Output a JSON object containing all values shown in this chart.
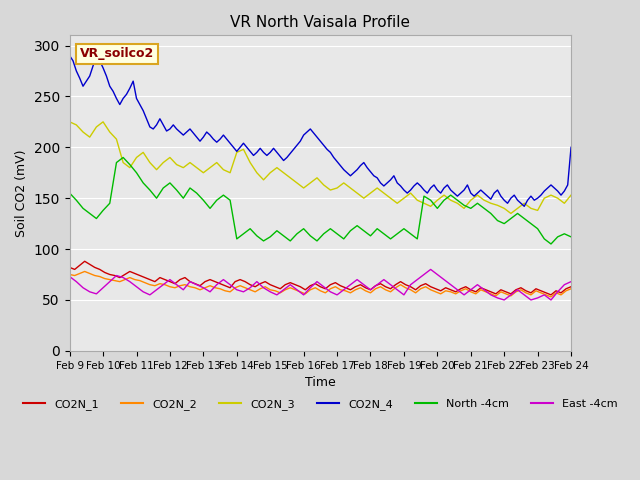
{
  "title": "VR North Vaisala Profile",
  "xlabel": "Time",
  "ylabel": "Soil CO2 (mV)",
  "xlim": [
    0,
    15
  ],
  "ylim": [
    0,
    310
  ],
  "yticks": [
    0,
    50,
    100,
    150,
    200,
    250,
    300
  ],
  "bg_color": "#e8e8e8",
  "plot_bg_color": "#e8e8e8",
  "annotation_text": "VR_soilco2",
  "legend_labels": [
    "CO2N_1",
    "CO2N_2",
    "CO2N_3",
    "CO2N_4",
    "North -4cm",
    "East -4cm"
  ],
  "legend_colors": [
    "#cc0000",
    "#ff8800",
    "#cccc00",
    "#0000cc",
    "#00bb00",
    "#cc00cc"
  ],
  "xtick_labels": [
    "Feb 9",
    "Feb 10",
    "Feb 11",
    "Feb 12",
    "Feb 13",
    "Feb 14",
    "Feb 15",
    "Feb 16",
    "Feb 17",
    "Feb 18",
    "Feb 19",
    "Feb 20",
    "Feb 21",
    "Feb 22",
    "Feb 23",
    "Feb 24"
  ],
  "series": {
    "CO2N_1": {
      "color": "#cc0000",
      "x": [
        0,
        0.15,
        0.3,
        0.45,
        0.6,
        0.75,
        0.9,
        1.05,
        1.2,
        1.35,
        1.5,
        1.65,
        1.8,
        1.95,
        2.1,
        2.25,
        2.4,
        2.55,
        2.7,
        2.85,
        3.0,
        3.15,
        3.3,
        3.45,
        3.6,
        3.75,
        3.9,
        4.05,
        4.2,
        4.35,
        4.5,
        4.65,
        4.8,
        4.95,
        5.1,
        5.25,
        5.4,
        5.55,
        5.7,
        5.85,
        6.0,
        6.15,
        6.3,
        6.45,
        6.6,
        6.75,
        6.9,
        7.05,
        7.2,
        7.35,
        7.5,
        7.65,
        7.8,
        7.95,
        8.1,
        8.25,
        8.4,
        8.55,
        8.7,
        8.85,
        9.0,
        9.15,
        9.3,
        9.45,
        9.6,
        9.75,
        9.9,
        10.05,
        10.2,
        10.35,
        10.5,
        10.65,
        10.8,
        10.95,
        11.1,
        11.25,
        11.4,
        11.55,
        11.7,
        11.85,
        12.0,
        12.15,
        12.3,
        12.45,
        12.6,
        12.75,
        12.9,
        13.05,
        13.2,
        13.35,
        13.5,
        13.65,
        13.8,
        13.95,
        14.1,
        14.25,
        14.4,
        14.55,
        14.7,
        14.85,
        15.0
      ],
      "y": [
        82,
        80,
        84,
        88,
        85,
        82,
        80,
        77,
        75,
        74,
        72,
        75,
        78,
        76,
        74,
        72,
        70,
        68,
        72,
        70,
        68,
        66,
        70,
        72,
        68,
        66,
        64,
        68,
        70,
        68,
        66,
        64,
        62,
        68,
        70,
        68,
        65,
        63,
        66,
        68,
        65,
        63,
        61,
        65,
        67,
        65,
        63,
        60,
        64,
        66,
        63,
        61,
        65,
        67,
        64,
        62,
        60,
        63,
        65,
        62,
        60,
        64,
        66,
        63,
        61,
        65,
        68,
        65,
        63,
        60,
        64,
        66,
        63,
        61,
        59,
        62,
        60,
        58,
        61,
        63,
        60,
        58,
        62,
        60,
        58,
        56,
        60,
        58,
        56,
        60,
        62,
        59,
        57,
        61,
        59,
        57,
        55,
        59,
        57,
        61,
        63
      ]
    },
    "CO2N_2": {
      "color": "#ff8800",
      "x": [
        0,
        0.15,
        0.3,
        0.45,
        0.6,
        0.75,
        0.9,
        1.05,
        1.2,
        1.35,
        1.5,
        1.65,
        1.8,
        1.95,
        2.1,
        2.25,
        2.4,
        2.55,
        2.7,
        2.85,
        3.0,
        3.15,
        3.3,
        3.45,
        3.6,
        3.75,
        3.9,
        4.05,
        4.2,
        4.35,
        4.5,
        4.65,
        4.8,
        4.95,
        5.1,
        5.25,
        5.4,
        5.55,
        5.7,
        5.85,
        6.0,
        6.15,
        6.3,
        6.45,
        6.6,
        6.75,
        6.9,
        7.05,
        7.2,
        7.35,
        7.5,
        7.65,
        7.8,
        7.95,
        8.1,
        8.25,
        8.4,
        8.55,
        8.7,
        8.85,
        9.0,
        9.15,
        9.3,
        9.45,
        9.6,
        9.75,
        9.9,
        10.05,
        10.2,
        10.35,
        10.5,
        10.65,
        10.8,
        10.95,
        11.1,
        11.25,
        11.4,
        11.55,
        11.7,
        11.85,
        12.0,
        12.15,
        12.3,
        12.45,
        12.6,
        12.75,
        12.9,
        13.05,
        13.2,
        13.35,
        13.5,
        13.65,
        13.8,
        13.95,
        14.1,
        14.25,
        14.4,
        14.55,
        14.7,
        14.85,
        15.0
      ],
      "y": [
        75,
        74,
        76,
        78,
        76,
        74,
        73,
        71,
        70,
        69,
        68,
        70,
        72,
        70,
        69,
        67,
        65,
        64,
        66,
        65,
        63,
        62,
        64,
        65,
        63,
        62,
        60,
        62,
        64,
        62,
        61,
        59,
        58,
        62,
        64,
        62,
        60,
        58,
        61,
        63,
        60,
        59,
        57,
        60,
        62,
        60,
        58,
        56,
        60,
        62,
        59,
        57,
        61,
        63,
        60,
        59,
        57,
        60,
        62,
        59,
        57,
        61,
        63,
        60,
        58,
        62,
        65,
        62,
        60,
        57,
        61,
        63,
        60,
        58,
        56,
        59,
        58,
        56,
        59,
        61,
        58,
        56,
        60,
        58,
        56,
        54,
        58,
        56,
        54,
        58,
        60,
        57,
        55,
        59,
        57,
        55,
        53,
        57,
        55,
        59,
        61
      ]
    },
    "CO2N_3": {
      "color": "#cccc00",
      "x": [
        0,
        0.2,
        0.4,
        0.6,
        0.8,
        1.0,
        1.2,
        1.4,
        1.6,
        1.8,
        2.0,
        2.2,
        2.4,
        2.6,
        2.8,
        3.0,
        3.2,
        3.4,
        3.6,
        3.8,
        4.0,
        4.2,
        4.4,
        4.6,
        4.8,
        5.0,
        5.2,
        5.4,
        5.6,
        5.8,
        6.0,
        6.2,
        6.4,
        6.6,
        6.8,
        7.0,
        7.2,
        7.4,
        7.6,
        7.8,
        8.0,
        8.2,
        8.4,
        8.6,
        8.8,
        9.0,
        9.2,
        9.4,
        9.6,
        9.8,
        10.0,
        10.2,
        10.4,
        10.6,
        10.8,
        11.0,
        11.2,
        11.4,
        11.6,
        11.8,
        12.0,
        12.2,
        12.4,
        12.6,
        12.8,
        13.0,
        13.2,
        13.4,
        13.6,
        13.8,
        14.0,
        14.2,
        14.4,
        14.6,
        14.8,
        15.0
      ],
      "y": [
        225,
        222,
        215,
        210,
        220,
        225,
        215,
        208,
        185,
        180,
        190,
        195,
        185,
        178,
        185,
        190,
        183,
        180,
        185,
        180,
        175,
        180,
        185,
        178,
        175,
        195,
        198,
        185,
        175,
        168,
        175,
        180,
        175,
        170,
        165,
        160,
        165,
        170,
        163,
        158,
        160,
        165,
        160,
        155,
        150,
        155,
        160,
        155,
        150,
        145,
        150,
        155,
        148,
        145,
        142,
        148,
        153,
        148,
        145,
        140,
        148,
        153,
        148,
        145,
        143,
        140,
        135,
        140,
        145,
        140,
        138,
        150,
        153,
        150,
        145,
        153
      ]
    },
    "CO2N_4": {
      "color": "#0000cc",
      "x": [
        0,
        0.1,
        0.2,
        0.3,
        0.4,
        0.5,
        0.6,
        0.7,
        0.8,
        0.9,
        1.0,
        1.1,
        1.2,
        1.3,
        1.4,
        1.5,
        1.6,
        1.7,
        1.8,
        1.9,
        2.0,
        2.1,
        2.2,
        2.3,
        2.4,
        2.5,
        2.6,
        2.7,
        2.8,
        2.9,
        3.0,
        3.1,
        3.2,
        3.3,
        3.4,
        3.5,
        3.6,
        3.7,
        3.8,
        3.9,
        4.0,
        4.1,
        4.2,
        4.3,
        4.4,
        4.5,
        4.6,
        4.7,
        4.8,
        4.9,
        5.0,
        5.1,
        5.2,
        5.3,
        5.4,
        5.5,
        5.6,
        5.7,
        5.8,
        5.9,
        6.0,
        6.1,
        6.2,
        6.3,
        6.4,
        6.5,
        6.6,
        6.7,
        6.8,
        6.9,
        7.0,
        7.1,
        7.2,
        7.3,
        7.4,
        7.5,
        7.6,
        7.7,
        7.8,
        7.9,
        8.0,
        8.1,
        8.2,
        8.3,
        8.4,
        8.5,
        8.6,
        8.7,
        8.8,
        8.9,
        9.0,
        9.1,
        9.2,
        9.3,
        9.4,
        9.5,
        9.6,
        9.7,
        9.8,
        9.9,
        10.0,
        10.1,
        10.2,
        10.3,
        10.4,
        10.5,
        10.6,
        10.7,
        10.8,
        10.9,
        11.0,
        11.1,
        11.2,
        11.3,
        11.4,
        11.5,
        11.6,
        11.7,
        11.8,
        11.9,
        12.0,
        12.1,
        12.2,
        12.3,
        12.4,
        12.5,
        12.6,
        12.7,
        12.8,
        12.9,
        13.0,
        13.1,
        13.2,
        13.3,
        13.4,
        13.5,
        13.6,
        13.7,
        13.8,
        13.9,
        14.0,
        14.1,
        14.2,
        14.3,
        14.4,
        14.5,
        14.6,
        14.7,
        14.8,
        14.9,
        15.0
      ],
      "y": [
        290,
        285,
        275,
        268,
        260,
        265,
        270,
        280,
        290,
        285,
        278,
        270,
        260,
        255,
        248,
        242,
        248,
        252,
        258,
        265,
        248,
        242,
        236,
        228,
        220,
        218,
        222,
        228,
        222,
        216,
        218,
        222,
        218,
        215,
        212,
        215,
        218,
        214,
        210,
        206,
        210,
        215,
        212,
        208,
        205,
        208,
        212,
        208,
        204,
        200,
        196,
        200,
        204,
        200,
        196,
        192,
        195,
        199,
        195,
        192,
        195,
        199,
        195,
        191,
        187,
        190,
        194,
        198,
        202,
        206,
        212,
        215,
        218,
        214,
        210,
        206,
        202,
        198,
        195,
        190,
        186,
        182,
        178,
        175,
        172,
        175,
        178,
        182,
        185,
        180,
        176,
        172,
        170,
        165,
        162,
        165,
        168,
        172,
        165,
        162,
        158,
        155,
        158,
        162,
        165,
        162,
        158,
        155,
        160,
        163,
        158,
        155,
        160,
        163,
        158,
        155,
        152,
        155,
        158,
        163,
        155,
        152,
        155,
        158,
        155,
        152,
        149,
        155,
        158,
        152,
        148,
        145,
        150,
        153,
        148,
        145,
        142,
        148,
        152,
        148,
        150,
        153,
        157,
        160,
        163,
        160,
        157,
        153,
        157,
        163,
        200
      ]
    },
    "North_4cm": {
      "color": "#00bb00",
      "x": [
        0,
        0.2,
        0.4,
        0.6,
        0.8,
        1.0,
        1.2,
        1.4,
        1.6,
        1.8,
        2.0,
        2.2,
        2.4,
        2.6,
        2.8,
        3.0,
        3.2,
        3.4,
        3.6,
        3.8,
        4.0,
        4.2,
        4.4,
        4.6,
        4.8,
        5.0,
        5.2,
        5.4,
        5.6,
        5.8,
        6.0,
        6.2,
        6.4,
        6.6,
        6.8,
        7.0,
        7.2,
        7.4,
        7.6,
        7.8,
        8.0,
        8.2,
        8.4,
        8.6,
        8.8,
        9.0,
        9.2,
        9.4,
        9.6,
        9.8,
        10.0,
        10.2,
        10.4,
        10.6,
        10.8,
        11.0,
        11.2,
        11.4,
        11.6,
        11.8,
        12.0,
        12.2,
        12.4,
        12.6,
        12.8,
        13.0,
        13.2,
        13.4,
        13.6,
        13.8,
        14.0,
        14.2,
        14.4,
        14.6,
        14.8,
        15.0
      ],
      "y": [
        155,
        148,
        140,
        135,
        130,
        138,
        145,
        185,
        190,
        183,
        175,
        165,
        158,
        150,
        160,
        165,
        158,
        150,
        160,
        155,
        148,
        140,
        148,
        153,
        148,
        110,
        115,
        120,
        113,
        108,
        112,
        118,
        113,
        108,
        115,
        120,
        113,
        108,
        115,
        120,
        115,
        110,
        118,
        123,
        118,
        113,
        120,
        115,
        110,
        115,
        120,
        115,
        110,
        152,
        148,
        140,
        148,
        153,
        148,
        143,
        140,
        145,
        140,
        135,
        128,
        125,
        130,
        135,
        130,
        125,
        120,
        110,
        105,
        112,
        115,
        112
      ]
    },
    "East_4cm": {
      "color": "#cc00cc",
      "x": [
        0,
        0.2,
        0.4,
        0.6,
        0.8,
        1.0,
        1.2,
        1.4,
        1.6,
        1.8,
        2.0,
        2.2,
        2.4,
        2.6,
        2.8,
        3.0,
        3.2,
        3.4,
        3.6,
        3.8,
        4.0,
        4.2,
        4.4,
        4.6,
        4.8,
        5.0,
        5.2,
        5.4,
        5.6,
        5.8,
        6.0,
        6.2,
        6.4,
        6.6,
        6.8,
        7.0,
        7.2,
        7.4,
        7.6,
        7.8,
        8.0,
        8.2,
        8.4,
        8.6,
        8.8,
        9.0,
        9.2,
        9.4,
        9.6,
        9.8,
        10.0,
        10.2,
        10.4,
        10.6,
        10.8,
        11.0,
        11.2,
        11.4,
        11.6,
        11.8,
        12.0,
        12.2,
        12.4,
        12.6,
        12.8,
        13.0,
        13.2,
        13.4,
        13.6,
        13.8,
        14.0,
        14.2,
        14.4,
        14.6,
        14.8,
        15.0
      ],
      "y": [
        73,
        68,
        62,
        58,
        56,
        62,
        68,
        74,
        72,
        68,
        63,
        58,
        55,
        60,
        65,
        70,
        65,
        60,
        68,
        65,
        62,
        58,
        65,
        70,
        65,
        60,
        58,
        62,
        68,
        62,
        58,
        55,
        60,
        65,
        60,
        55,
        62,
        68,
        63,
        58,
        55,
        60,
        65,
        70,
        65,
        60,
        65,
        70,
        65,
        60,
        55,
        65,
        70,
        75,
        80,
        75,
        70,
        65,
        60,
        55,
        60,
        65,
        60,
        55,
        52,
        50,
        55,
        60,
        55,
        50,
        52,
        55,
        50,
        58,
        65,
        68
      ]
    }
  }
}
